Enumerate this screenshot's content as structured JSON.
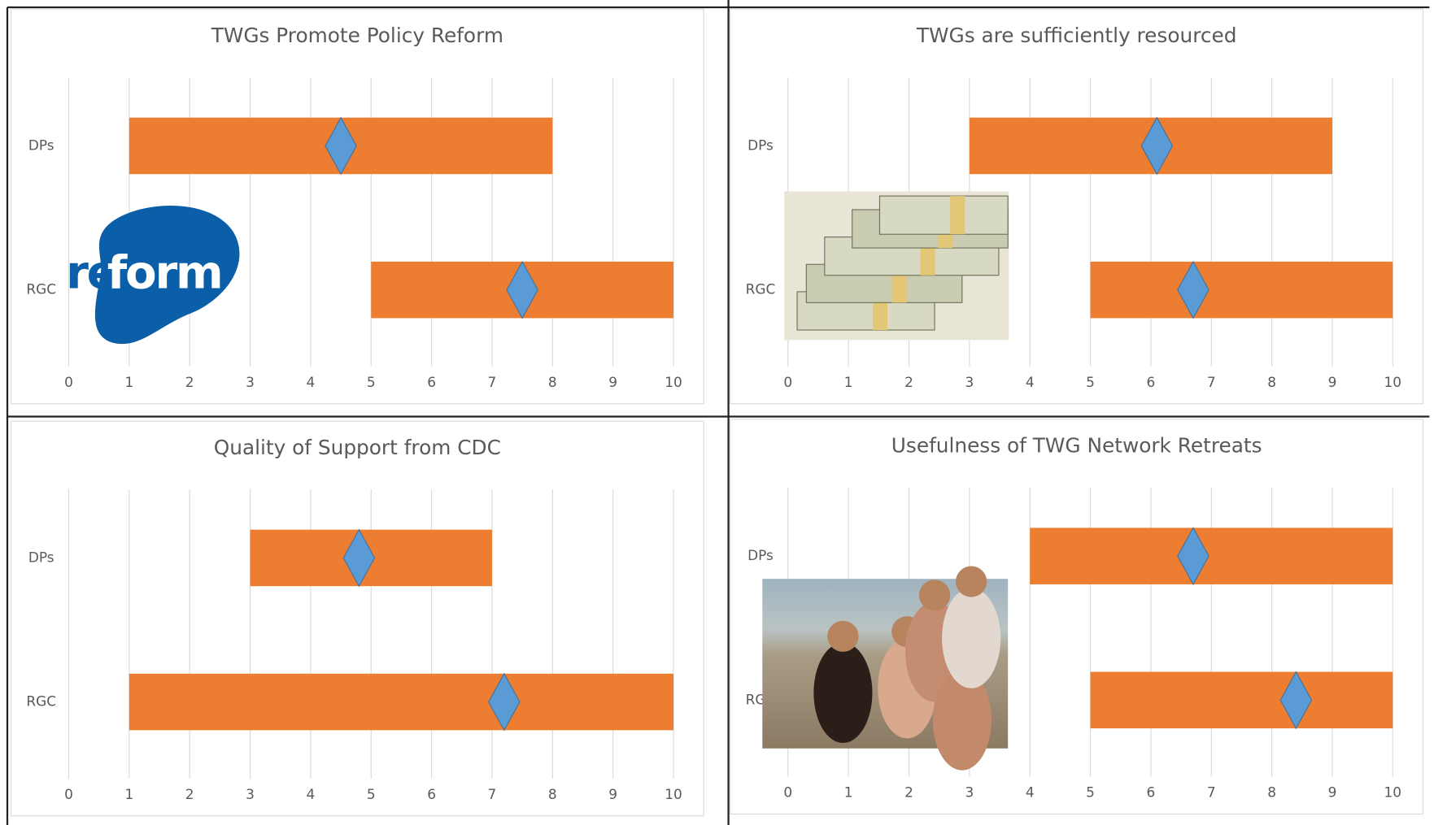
{
  "chart_data": [
    {
      "type": "floating-bar",
      "title": "TWGs Promote Policy Reform",
      "categories": [
        "DPs",
        "RGC"
      ],
      "ranges": [
        [
          1,
          8
        ],
        [
          5,
          10
        ]
      ],
      "markers": [
        4.5,
        7.5
      ],
      "bar_color": "#ed7d31",
      "marker_color": "#5b9bd5",
      "xlim": [
        0,
        10
      ],
      "xticks": [
        0,
        1,
        2,
        3,
        4,
        5,
        6,
        7,
        8,
        9,
        10
      ],
      "grid": true,
      "logo_text": [
        "re",
        "form"
      ]
    },
    {
      "type": "floating-bar",
      "title": "TWGs are sufficiently resourced",
      "categories": [
        "DPs",
        "RGC"
      ],
      "ranges": [
        [
          3,
          9
        ],
        [
          5,
          10
        ]
      ],
      "markers": [
        6.1,
        6.7
      ],
      "bar_color": "#ed7d31",
      "marker_color": "#5b9bd5",
      "xlim": [
        0,
        10
      ],
      "xticks": [
        0,
        1,
        2,
        3,
        4,
        5,
        6,
        7,
        8,
        9,
        10
      ],
      "grid": true
    },
    {
      "type": "floating-bar",
      "title": "Quality of Support from CDC",
      "categories": [
        "DPs",
        "RGC"
      ],
      "ranges": [
        [
          3,
          7
        ],
        [
          1,
          10
        ]
      ],
      "markers": [
        4.8,
        7.2
      ],
      "bar_color": "#ed7d31",
      "marker_color": "#5b9bd5",
      "xlim": [
        0,
        10
      ],
      "xticks": [
        0,
        1,
        2,
        3,
        4,
        5,
        6,
        7,
        8,
        9,
        10
      ],
      "grid": true
    },
    {
      "type": "floating-bar",
      "title": "Usefulness of TWG Network Retreats",
      "categories": [
        "DPs",
        "RGC"
      ],
      "ranges": [
        [
          4,
          10
        ],
        [
          5,
          10
        ]
      ],
      "markers": [
        6.7,
        8.4
      ],
      "bar_color": "#ed7d31",
      "marker_color": "#5b9bd5",
      "xlim": [
        0,
        10
      ],
      "xticks": [
        0,
        1,
        2,
        3,
        4,
        5,
        6,
        7,
        8,
        9,
        10
      ],
      "grid": true
    }
  ]
}
